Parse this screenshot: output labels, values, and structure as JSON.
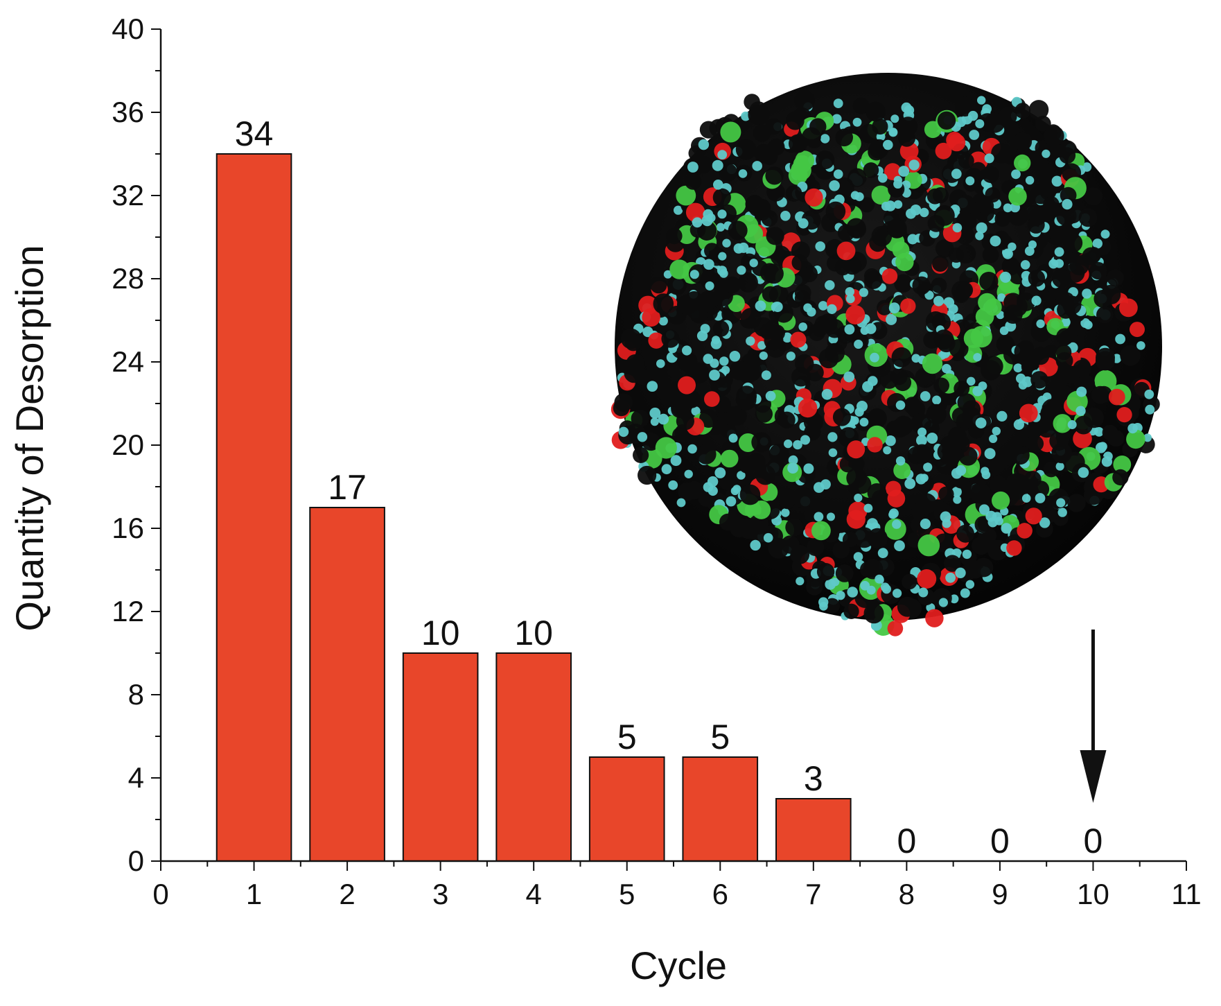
{
  "chart_data": {
    "type": "bar",
    "title": "",
    "xlabel": "Cycle",
    "ylabel": "Quantity of Desorption",
    "xlim": [
      0,
      11
    ],
    "ylim": [
      0,
      40
    ],
    "x_ticks": [
      0,
      1,
      2,
      3,
      4,
      5,
      6,
      7,
      8,
      9,
      10,
      11
    ],
    "y_ticks": [
      0,
      4,
      8,
      12,
      16,
      20,
      24,
      28,
      32,
      36,
      40
    ],
    "categories": [
      1,
      2,
      3,
      4,
      5,
      6,
      7,
      8,
      9,
      10
    ],
    "values": [
      34,
      17,
      10,
      10,
      5,
      5,
      3,
      0,
      0,
      0
    ],
    "data_labels": [
      "34",
      "17",
      "10",
      "10",
      "5",
      "5",
      "3",
      "0",
      "0",
      "0"
    ],
    "grid": false,
    "legend": "none",
    "bar_color": "#e8462a",
    "annotations": [
      {
        "type": "arrow",
        "pointing_to_cycle": 10,
        "direction": "down"
      },
      {
        "type": "inset-image",
        "content": "molecular-sphere",
        "colors": [
          "#0d0d0d",
          "#5fc9c9",
          "#e01e1e",
          "#45c745"
        ]
      }
    ]
  }
}
